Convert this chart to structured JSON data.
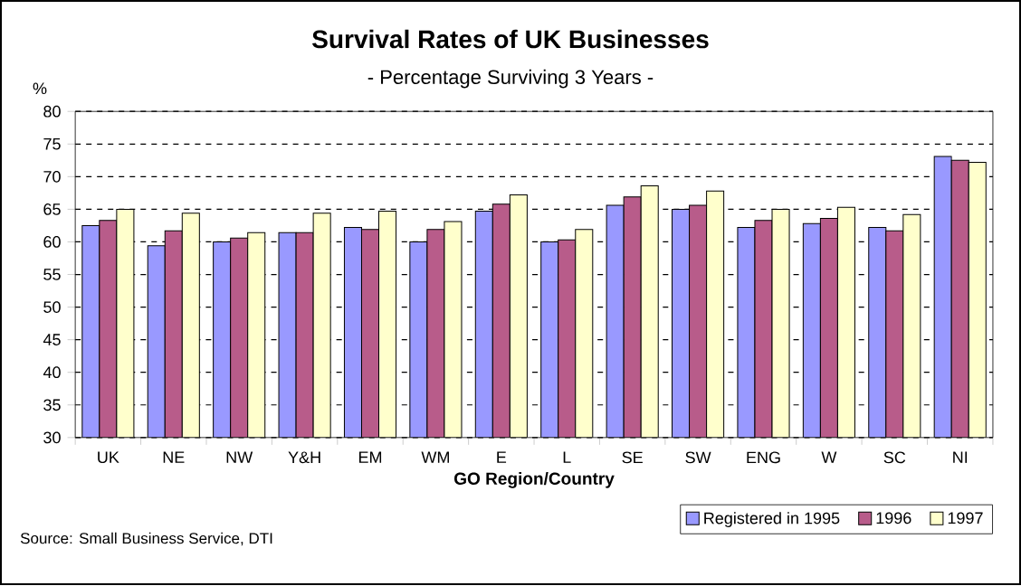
{
  "chart_data": {
    "type": "bar",
    "title": "Survival Rates of UK Businesses",
    "subtitle": "- Percentage Surviving 3 Years -",
    "xlabel": "GO Region/Country",
    "ylabel": "%",
    "categories": [
      "UK",
      "NE",
      "NW",
      "Y&H",
      "EM",
      "WM",
      "E",
      "L",
      "SE",
      "SW",
      "ENG",
      "W",
      "SC",
      "NI"
    ],
    "series": [
      {
        "name": "Registered in 1995",
        "color": "#9999ff",
        "values": [
          62.5,
          59.4,
          60.0,
          61.4,
          62.2,
          60.0,
          64.7,
          60.0,
          65.6,
          65.0,
          62.2,
          62.8,
          62.2,
          73.1
        ]
      },
      {
        "name": "1996",
        "color": "#b85c8a",
        "values": [
          63.3,
          61.7,
          60.6,
          61.4,
          61.9,
          61.9,
          65.8,
          60.3,
          66.9,
          65.6,
          63.3,
          63.6,
          61.7,
          72.5
        ]
      },
      {
        "name": "1997",
        "color": "#ffffcc",
        "values": [
          65.0,
          64.4,
          61.4,
          64.4,
          64.7,
          63.1,
          67.2,
          61.9,
          68.6,
          67.8,
          65.0,
          65.3,
          64.2,
          72.2
        ]
      }
    ],
    "ylim": [
      30,
      80
    ],
    "yticks": [
      30,
      35,
      40,
      45,
      50,
      55,
      60,
      65,
      70,
      75,
      80
    ],
    "grid": "y",
    "legend": "bottom right",
    "annotations": [
      "Source: Small Business Service, DTI"
    ]
  }
}
